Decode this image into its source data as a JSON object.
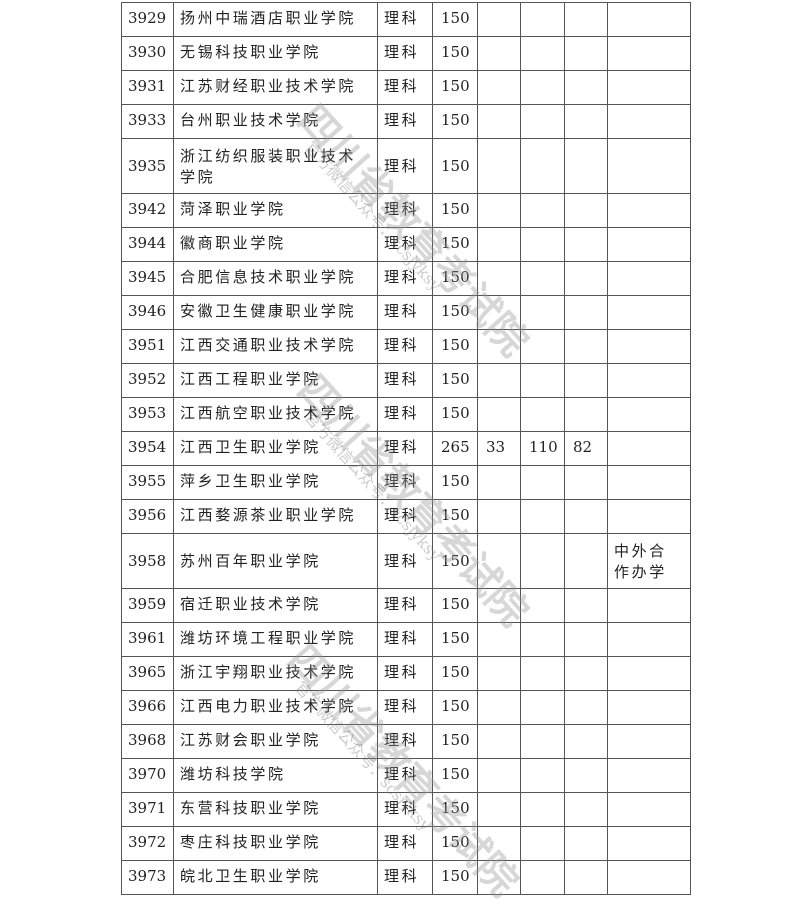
{
  "table": {
    "rows": [
      {
        "code": "3929",
        "name": "扬州中瑞酒店职业学院",
        "category": "理科",
        "plan": "150",
        "c5": "",
        "c6": "",
        "c7": "",
        "note": ""
      },
      {
        "code": "3930",
        "name": "无锡科技职业学院",
        "category": "理科",
        "plan": "150",
        "c5": "",
        "c6": "",
        "c7": "",
        "note": ""
      },
      {
        "code": "3931",
        "name": "江苏财经职业技术学院",
        "category": "理科",
        "plan": "150",
        "c5": "",
        "c6": "",
        "c7": "",
        "note": ""
      },
      {
        "code": "3933",
        "name": "台州职业技术学院",
        "category": "理科",
        "plan": "150",
        "c5": "",
        "c6": "",
        "c7": "",
        "note": ""
      },
      {
        "code": "3935",
        "name": "浙江纺织服装职业技术学院",
        "category": "理科",
        "plan": "150",
        "c5": "",
        "c6": "",
        "c7": "",
        "note": ""
      },
      {
        "code": "3942",
        "name": "菏泽职业学院",
        "category": "理科",
        "plan": "150",
        "c5": "",
        "c6": "",
        "c7": "",
        "note": ""
      },
      {
        "code": "3944",
        "name": "徽商职业学院",
        "category": "理科",
        "plan": "150",
        "c5": "",
        "c6": "",
        "c7": "",
        "note": ""
      },
      {
        "code": "3945",
        "name": "合肥信息技术职业学院",
        "category": "理科",
        "plan": "150",
        "c5": "",
        "c6": "",
        "c7": "",
        "note": ""
      },
      {
        "code": "3946",
        "name": "安徽卫生健康职业学院",
        "category": "理科",
        "plan": "150",
        "c5": "",
        "c6": "",
        "c7": "",
        "note": ""
      },
      {
        "code": "3951",
        "name": "江西交通职业技术学院",
        "category": "理科",
        "plan": "150",
        "c5": "",
        "c6": "",
        "c7": "",
        "note": ""
      },
      {
        "code": "3952",
        "name": "江西工程职业学院",
        "category": "理科",
        "plan": "150",
        "c5": "",
        "c6": "",
        "c7": "",
        "note": ""
      },
      {
        "code": "3953",
        "name": "江西航空职业技术学院",
        "category": "理科",
        "plan": "150",
        "c5": "",
        "c6": "",
        "c7": "",
        "note": ""
      },
      {
        "code": "3954",
        "name": "江西卫生职业学院",
        "category": "理科",
        "plan": "265",
        "c5": "33",
        "c6": "110",
        "c7": "82",
        "note": ""
      },
      {
        "code": "3955",
        "name": "萍乡卫生职业学院",
        "category": "理科",
        "plan": "150",
        "c5": "",
        "c6": "",
        "c7": "",
        "note": ""
      },
      {
        "code": "3956",
        "name": "江西婺源茶业职业学院",
        "category": "理科",
        "plan": "150",
        "c5": "",
        "c6": "",
        "c7": "",
        "note": ""
      },
      {
        "code": "3958",
        "name": "苏州百年职业学院",
        "category": "理科",
        "plan": "150",
        "c5": "",
        "c6": "",
        "c7": "",
        "note": "中外合作办学"
      },
      {
        "code": "3959",
        "name": "宿迁职业技术学院",
        "category": "理科",
        "plan": "150",
        "c5": "",
        "c6": "",
        "c7": "",
        "note": ""
      },
      {
        "code": "3961",
        "name": "潍坊环境工程职业学院",
        "category": "理科",
        "plan": "150",
        "c5": "",
        "c6": "",
        "c7": "",
        "note": ""
      },
      {
        "code": "3965",
        "name": "浙江宇翔职业技术学院",
        "category": "理科",
        "plan": "150",
        "c5": "",
        "c6": "",
        "c7": "",
        "note": ""
      },
      {
        "code": "3966",
        "name": "江西电力职业技术学院",
        "category": "理科",
        "plan": "150",
        "c5": "",
        "c6": "",
        "c7": "",
        "note": ""
      },
      {
        "code": "3968",
        "name": "江苏财会职业学院",
        "category": "理科",
        "plan": "150",
        "c5": "",
        "c6": "",
        "c7": "",
        "note": ""
      },
      {
        "code": "3970",
        "name": "潍坊科技学院",
        "category": "理科",
        "plan": "150",
        "c5": "",
        "c6": "",
        "c7": "",
        "note": ""
      },
      {
        "code": "3971",
        "name": "东营科技职业学院",
        "category": "理科",
        "plan": "150",
        "c5": "",
        "c6": "",
        "c7": "",
        "note": ""
      },
      {
        "code": "3972",
        "name": "枣庄科技职业学院",
        "category": "理科",
        "plan": "150",
        "c5": "",
        "c6": "",
        "c7": "",
        "note": ""
      },
      {
        "code": "3973",
        "name": "皖北卫生职业学院",
        "category": "理科",
        "plan": "150",
        "c5": "",
        "c6": "",
        "c7": "",
        "note": ""
      }
    ]
  },
  "watermark": {
    "title": "四川省教育考试院",
    "subtitle": "官方微信公众号：scsjyksy"
  }
}
